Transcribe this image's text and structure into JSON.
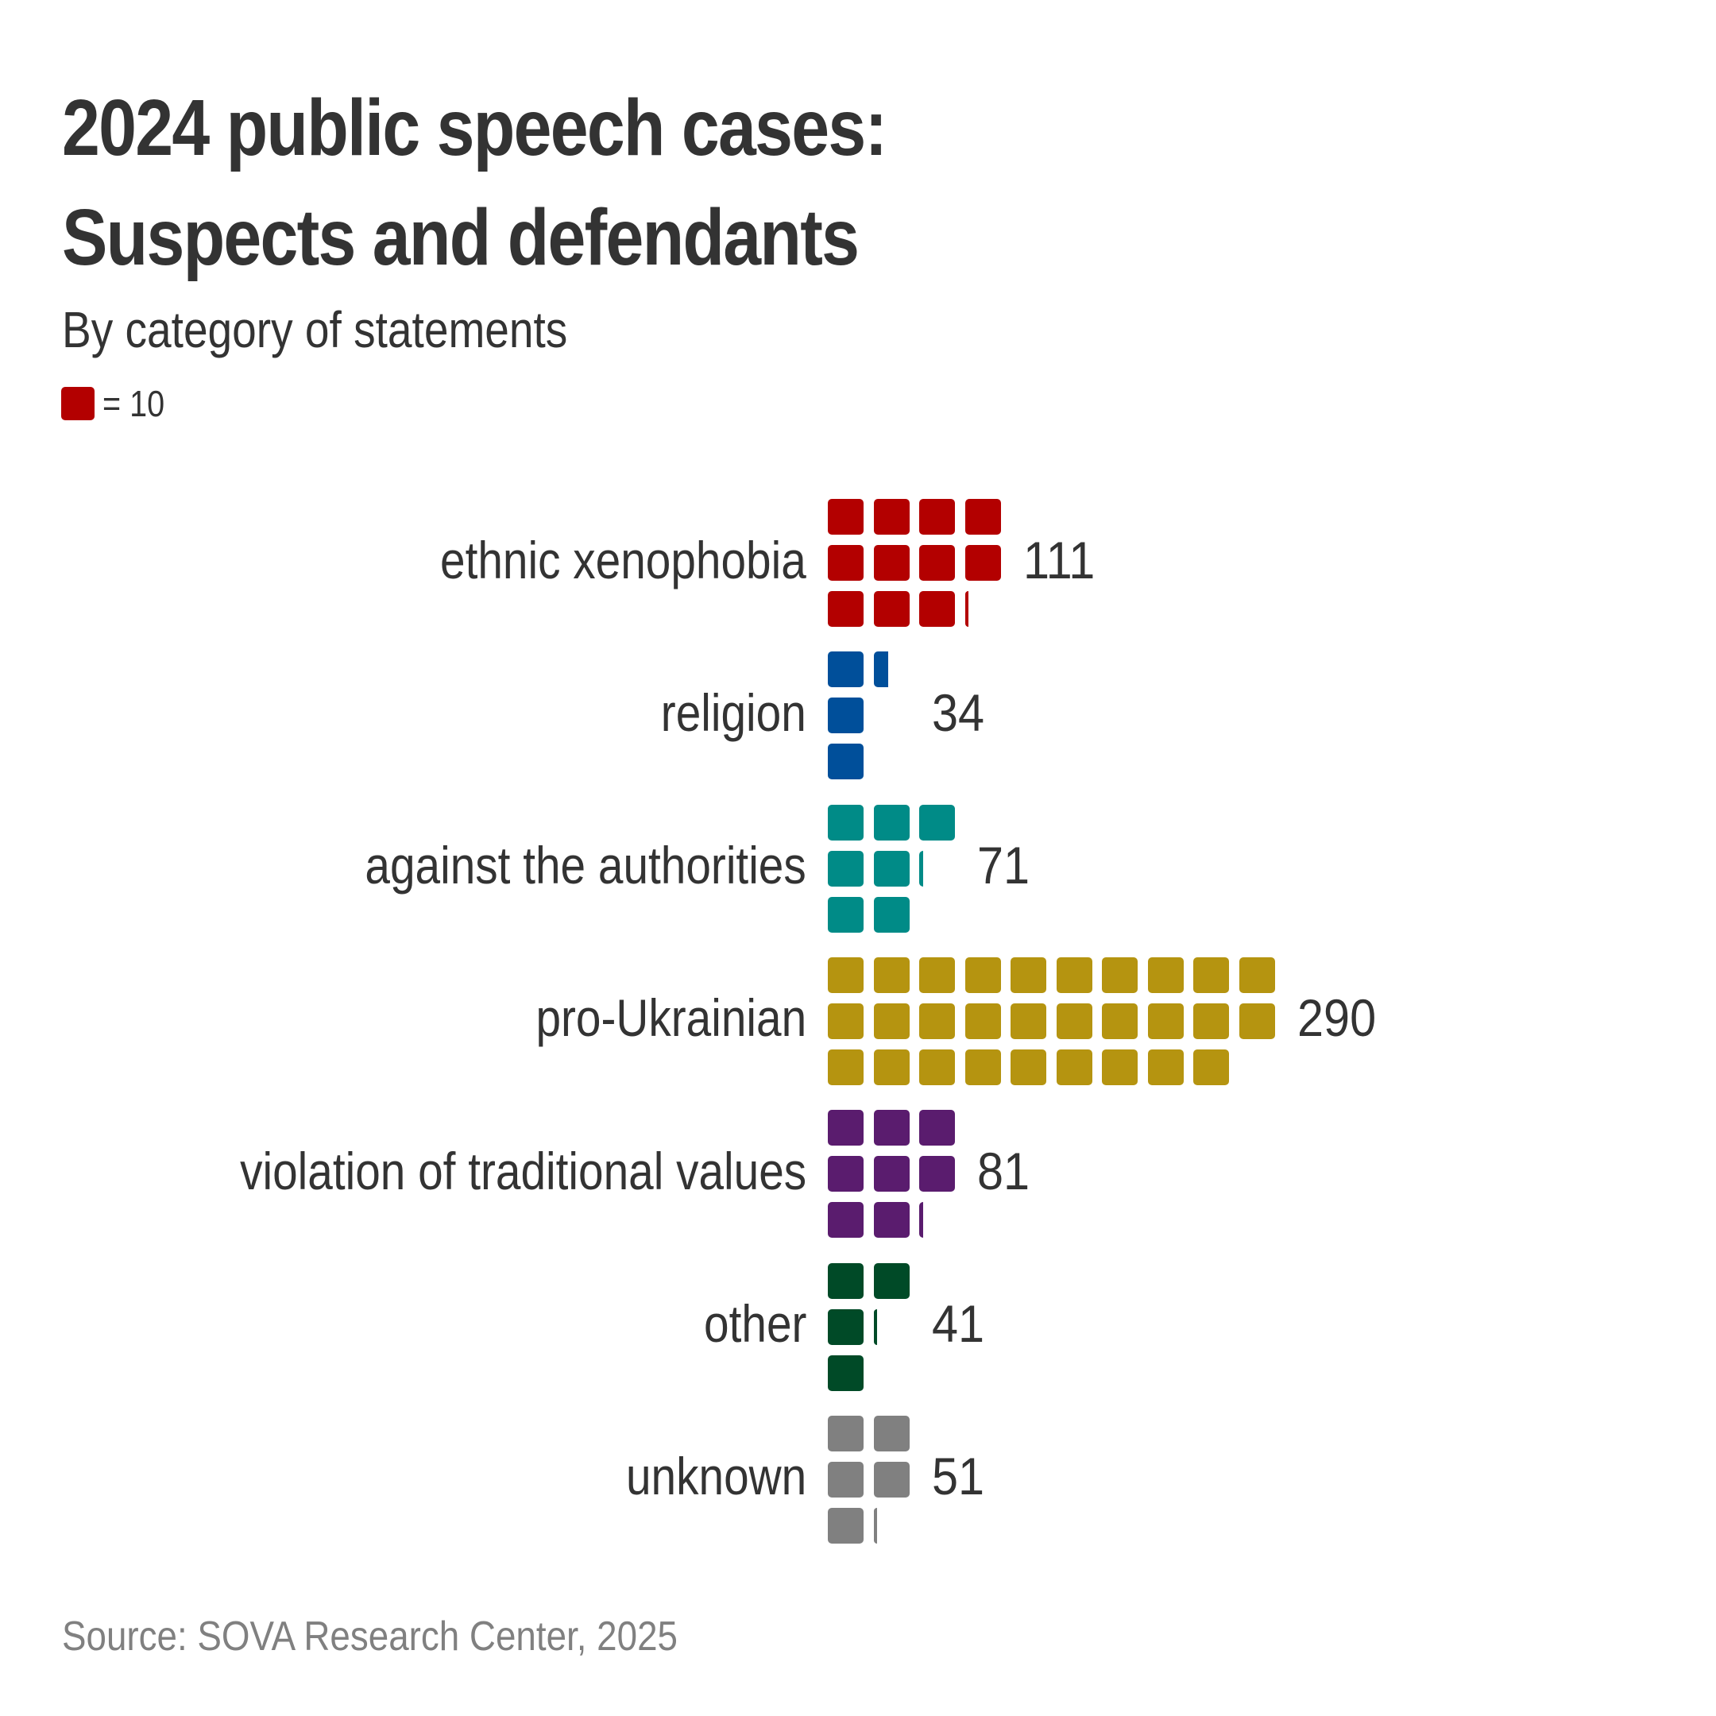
{
  "header": {
    "title_line1": "2024 public speech cases:",
    "title_line2": "Suspects and defendants",
    "subtitle": "By category of statements"
  },
  "legend": {
    "text": "= 10",
    "swatch_color": "#B30000"
  },
  "footer": {
    "source": "Source: SOVA Research Center, 2025"
  },
  "chart_data": {
    "type": "pictogram",
    "title": "2024 public speech cases: Suspects and defendants",
    "subtitle": "By category of statements",
    "unit_per_icon": 10,
    "rows_per_block": 3,
    "categories": [
      "ethnic xenophobia",
      "religion",
      "against the authorities",
      "pro-Ukrainian",
      "violation of traditional values",
      "other",
      "unknown"
    ],
    "values": [
      111,
      34,
      71,
      290,
      81,
      41,
      51
    ],
    "value_labels": [
      "111",
      "34",
      "71",
      "290",
      "81",
      "41",
      "51"
    ],
    "colors": [
      "#B30000",
      "#004F9A",
      "#008B87",
      "#B59410",
      "#5A1C6E",
      "#004A27",
      "#808080"
    ],
    "source": "Source: SOVA Research Center, 2025"
  }
}
